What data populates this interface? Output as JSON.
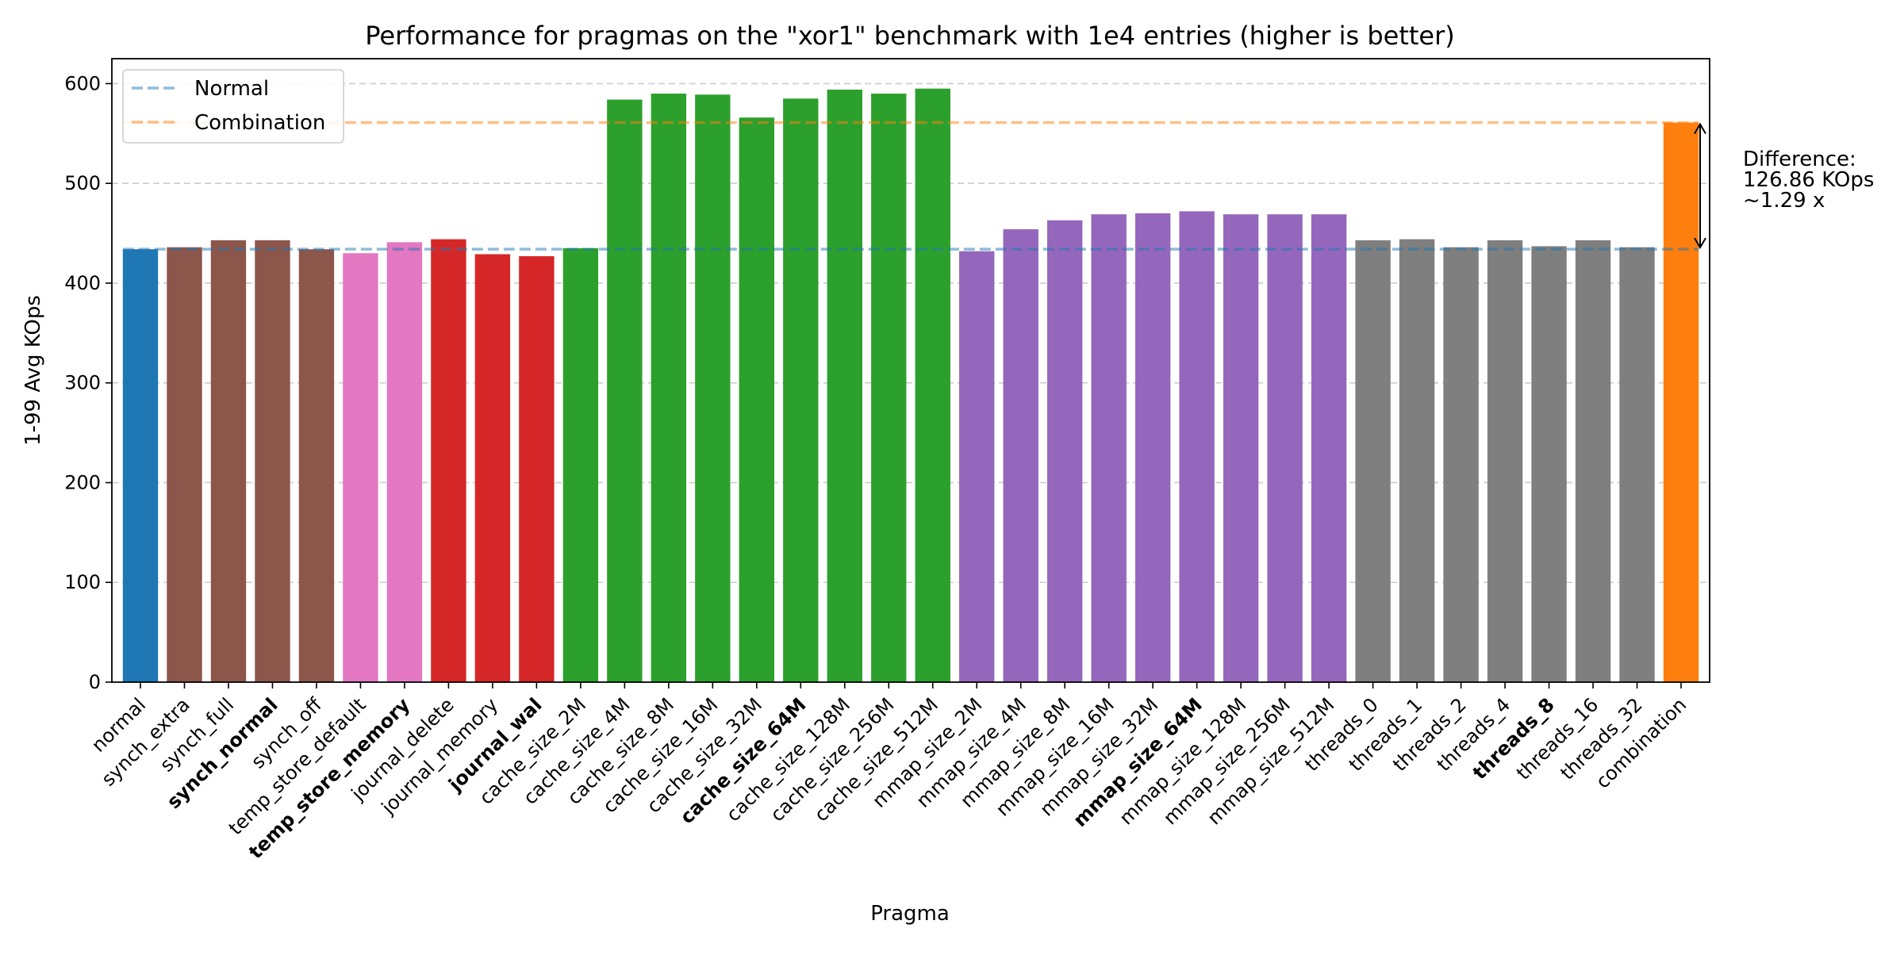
{
  "chart_data": {
    "type": "bar",
    "title": "Performance for pragmas on the \"xor1\" benchmark with 1e4 entries (higher is better)",
    "xlabel": "Pragma",
    "ylabel": "1-99 Avg KOps",
    "ylim": [
      0,
      625
    ],
    "yticks": [
      0,
      100,
      200,
      300,
      400,
      500,
      600
    ],
    "grid": "horizontal dashed",
    "legend_position": "top-left",
    "categories": [
      "normal",
      "synch_extra",
      "synch_full",
      "synch_normal",
      "synch_off",
      "temp_store_default",
      "temp_store_memory",
      "journal_delete",
      "journal_memory",
      "journal_wal",
      "cache_size_2M",
      "cache_size_4M",
      "cache_size_8M",
      "cache_size_16M",
      "cache_size_32M",
      "cache_size_64M",
      "cache_size_128M",
      "cache_size_256M",
      "cache_size_512M",
      "mmap_size_2M",
      "mmap_size_4M",
      "mmap_size_8M",
      "mmap_size_16M",
      "mmap_size_32M",
      "mmap_size_64M",
      "mmap_size_128M",
      "mmap_size_256M",
      "mmap_size_512M",
      "threads_0",
      "threads_1",
      "threads_2",
      "threads_4",
      "threads_8",
      "threads_16",
      "threads_32",
      "combination"
    ],
    "values": [
      434,
      436,
      443,
      443,
      434,
      430,
      441,
      444,
      429,
      427,
      435,
      584,
      590,
      589,
      566,
      585,
      594,
      590,
      595,
      432,
      454,
      463,
      469,
      470,
      472,
      469,
      469,
      469,
      443,
      444,
      436,
      443,
      437,
      443,
      436,
      561
    ],
    "bold_labels": [
      "synch_normal",
      "temp_store_memory",
      "journal_wal",
      "cache_size_64M",
      "mmap_size_64M",
      "threads_8"
    ],
    "bar_colors": [
      "#1f77b4",
      "#8c564b",
      "#8c564b",
      "#8c564b",
      "#8c564b",
      "#e377c2",
      "#e377c2",
      "#d62728",
      "#d62728",
      "#d62728",
      "#2ca02c",
      "#2ca02c",
      "#2ca02c",
      "#2ca02c",
      "#2ca02c",
      "#2ca02c",
      "#2ca02c",
      "#2ca02c",
      "#2ca02c",
      "#9467bd",
      "#9467bd",
      "#9467bd",
      "#9467bd",
      "#9467bd",
      "#9467bd",
      "#9467bd",
      "#9467bd",
      "#9467bd",
      "#7f7f7f",
      "#7f7f7f",
      "#7f7f7f",
      "#7f7f7f",
      "#7f7f7f",
      "#7f7f7f",
      "#7f7f7f",
      "#ff7f0e"
    ],
    "reference_lines": [
      {
        "name": "Normal",
        "value": 434.1,
        "color": "#1f77b4"
      },
      {
        "name": "Combination",
        "value": 560.96,
        "color": "#ff7f0e"
      }
    ],
    "annotation": {
      "lines": [
        "Difference:",
        "126.86 KOps",
        "~1.29 x"
      ],
      "from": 434.1,
      "to": 560.96
    }
  }
}
